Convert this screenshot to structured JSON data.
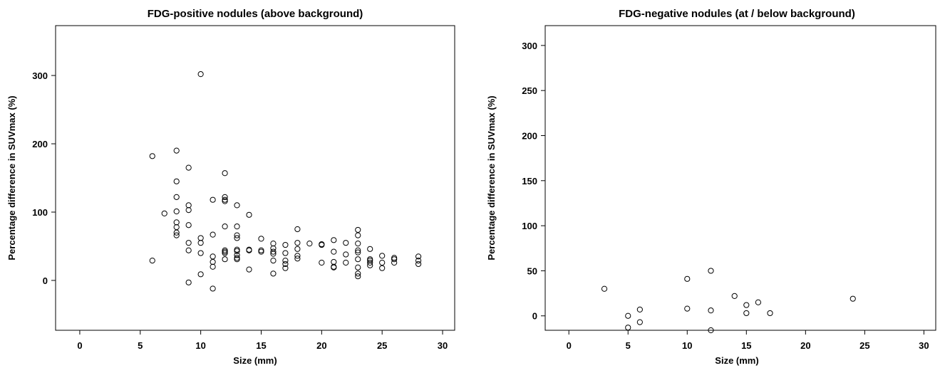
{
  "chart_data": [
    {
      "type": "scatter",
      "title": "FDG-positive nodules (above background)",
      "xlabel": "Size (mm)",
      "ylabel": "Percentage difference in SUVmax (%)",
      "xlim": [
        -2,
        31
      ],
      "ylim": [
        -73,
        373
      ],
      "xticks": [
        0,
        5,
        10,
        15,
        20,
        25,
        30
      ],
      "xtick_labels": [
        "0",
        "5",
        "10",
        "15",
        "20",
        "25",
        "30"
      ],
      "yticks": [
        0,
        100,
        200,
        300
      ],
      "ytick_labels": [
        "0",
        "100",
        "200",
        "300"
      ],
      "grid": false,
      "legend": "none",
      "points": [
        [
          6,
          182
        ],
        [
          6,
          29
        ],
        [
          7,
          98
        ],
        [
          8,
          190
        ],
        [
          8,
          145
        ],
        [
          8,
          122
        ],
        [
          8,
          101
        ],
        [
          8,
          85
        ],
        [
          8,
          78
        ],
        [
          8,
          70
        ],
        [
          8,
          66
        ],
        [
          9,
          165
        ],
        [
          9,
          110
        ],
        [
          9,
          103
        ],
        [
          9,
          81
        ],
        [
          9,
          55
        ],
        [
          9,
          44
        ],
        [
          9,
          -3
        ],
        [
          10,
          302
        ],
        [
          10,
          62
        ],
        [
          10,
          55
        ],
        [
          10,
          40
        ],
        [
          10,
          9
        ],
        [
          11,
          118
        ],
        [
          11,
          67
        ],
        [
          11,
          35
        ],
        [
          11,
          27
        ],
        [
          11,
          20
        ],
        [
          11,
          -12
        ],
        [
          12,
          157
        ],
        [
          12,
          122
        ],
        [
          12,
          118
        ],
        [
          12,
          116
        ],
        [
          12,
          79
        ],
        [
          12,
          44
        ],
        [
          12,
          42
        ],
        [
          12,
          40
        ],
        [
          12,
          31
        ],
        [
          13,
          110
        ],
        [
          13,
          79
        ],
        [
          13,
          66
        ],
        [
          13,
          62
        ],
        [
          13,
          45
        ],
        [
          13,
          43
        ],
        [
          13,
          37
        ],
        [
          13,
          33
        ],
        [
          13,
          31
        ],
        [
          14,
          96
        ],
        [
          14,
          45
        ],
        [
          14,
          44
        ],
        [
          14,
          16
        ],
        [
          15,
          61
        ],
        [
          15,
          44
        ],
        [
          15,
          42
        ],
        [
          16,
          54
        ],
        [
          16,
          47
        ],
        [
          16,
          42
        ],
        [
          16,
          39
        ],
        [
          16,
          29
        ],
        [
          16,
          10
        ],
        [
          17,
          52
        ],
        [
          17,
          40
        ],
        [
          17,
          29
        ],
        [
          17,
          24
        ],
        [
          17,
          18
        ],
        [
          18,
          75
        ],
        [
          18,
          55
        ],
        [
          18,
          46
        ],
        [
          18,
          36
        ],
        [
          18,
          32
        ],
        [
          19,
          54
        ],
        [
          20,
          53
        ],
        [
          20,
          52
        ],
        [
          20,
          26
        ],
        [
          21,
          59
        ],
        [
          21,
          42
        ],
        [
          21,
          27
        ],
        [
          21,
          20
        ],
        [
          21,
          19
        ],
        [
          22,
          55
        ],
        [
          22,
          38
        ],
        [
          22,
          26
        ],
        [
          23,
          74
        ],
        [
          23,
          66
        ],
        [
          23,
          54
        ],
        [
          23,
          44
        ],
        [
          23,
          41
        ],
        [
          23,
          31
        ],
        [
          23,
          19
        ],
        [
          23,
          10
        ],
        [
          23,
          6
        ],
        [
          24,
          46
        ],
        [
          24,
          31
        ],
        [
          24,
          29
        ],
        [
          24,
          26
        ],
        [
          24,
          22
        ],
        [
          25,
          36
        ],
        [
          25,
          26
        ],
        [
          25,
          18
        ],
        [
          26,
          33
        ],
        [
          26,
          31
        ],
        [
          26,
          26
        ],
        [
          28,
          35
        ],
        [
          28,
          29
        ],
        [
          28,
          24
        ]
      ]
    },
    {
      "type": "scatter",
      "title": "FDG-negative nodules (at / below background)",
      "xlabel": "Size (mm)",
      "ylabel": "Percentage difference in SUVmax (%)",
      "xlim": [
        -2,
        31
      ],
      "ylim": [
        -16,
        322
      ],
      "xticks": [
        0,
        5,
        10,
        15,
        20,
        25,
        30
      ],
      "xtick_labels": [
        "0",
        "5",
        "10",
        "15",
        "20",
        "25",
        "30"
      ],
      "yticks": [
        0,
        50,
        100,
        150,
        200,
        250,
        300
      ],
      "ytick_labels": [
        "0",
        "50",
        "100",
        "150",
        "200",
        "250",
        "300"
      ],
      "grid": false,
      "legend": "none",
      "points": [
        [
          3,
          30
        ],
        [
          5,
          0
        ],
        [
          5,
          -13
        ],
        [
          6,
          7
        ],
        [
          6,
          -7
        ],
        [
          10,
          41
        ],
        [
          10,
          8
        ],
        [
          12,
          50
        ],
        [
          12,
          6
        ],
        [
          12,
          -16
        ],
        [
          14,
          22
        ],
        [
          15,
          12
        ],
        [
          15,
          3
        ],
        [
          16,
          15
        ],
        [
          17,
          3
        ],
        [
          24,
          19
        ]
      ]
    }
  ]
}
